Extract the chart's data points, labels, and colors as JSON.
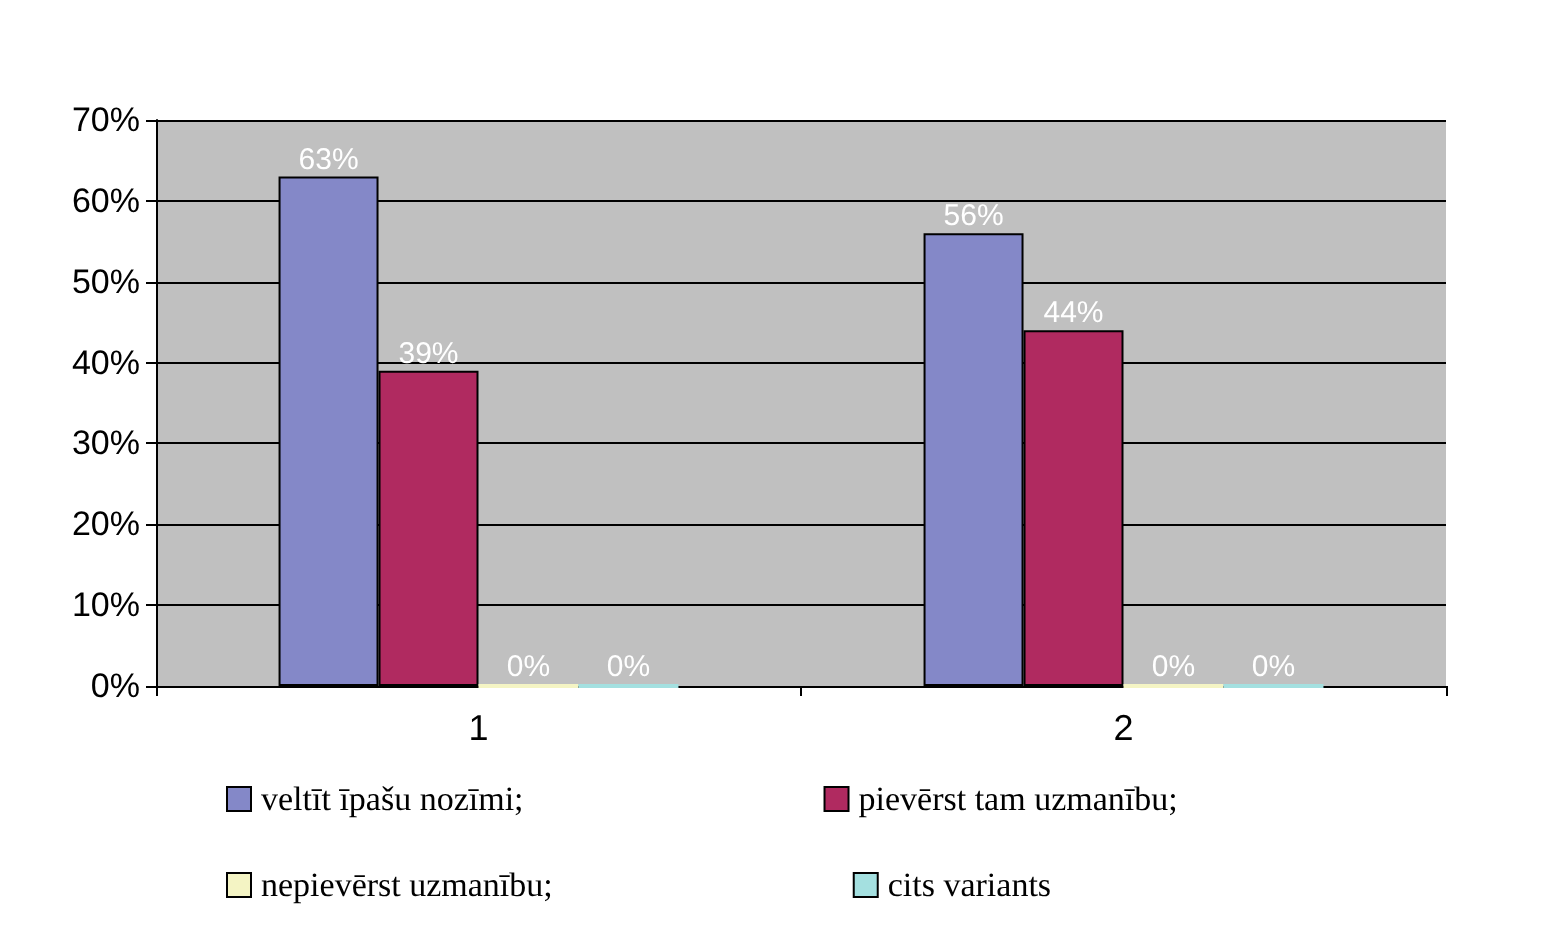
{
  "chart_data": {
    "type": "bar",
    "categories": [
      "1",
      "2"
    ],
    "series": [
      {
        "name": "veltīt īpašu nozīmi;",
        "color": "#8488c8",
        "values": [
          63,
          56
        ],
        "value_labels": [
          "63%",
          "56%"
        ]
      },
      {
        "name": "pievērst tam uzmanību;",
        "color": "#b02a60",
        "values": [
          39,
          44
        ],
        "value_labels": [
          "39%",
          "44%"
        ]
      },
      {
        "name": "nepievērst uzmanību;",
        "color": "#f4f4c4",
        "values": [
          0,
          0
        ],
        "value_labels": [
          "0%",
          "0%"
        ]
      },
      {
        "name": "cits variants",
        "color": "#a4e0e0",
        "values": [
          0,
          0
        ],
        "value_labels": [
          "0%",
          "0%"
        ]
      }
    ],
    "ylim": [
      0,
      70
    ],
    "yticks": [
      {
        "value": 0,
        "label": "0%"
      },
      {
        "value": 10,
        "label": "10%"
      },
      {
        "value": 20,
        "label": "20%"
      },
      {
        "value": 30,
        "label": "30%"
      },
      {
        "value": 40,
        "label": "40%"
      },
      {
        "value": 50,
        "label": "50%"
      },
      {
        "value": 60,
        "label": "60%"
      },
      {
        "value": 70,
        "label": "70%"
      }
    ],
    "grid": "y",
    "legend": "bottom"
  }
}
